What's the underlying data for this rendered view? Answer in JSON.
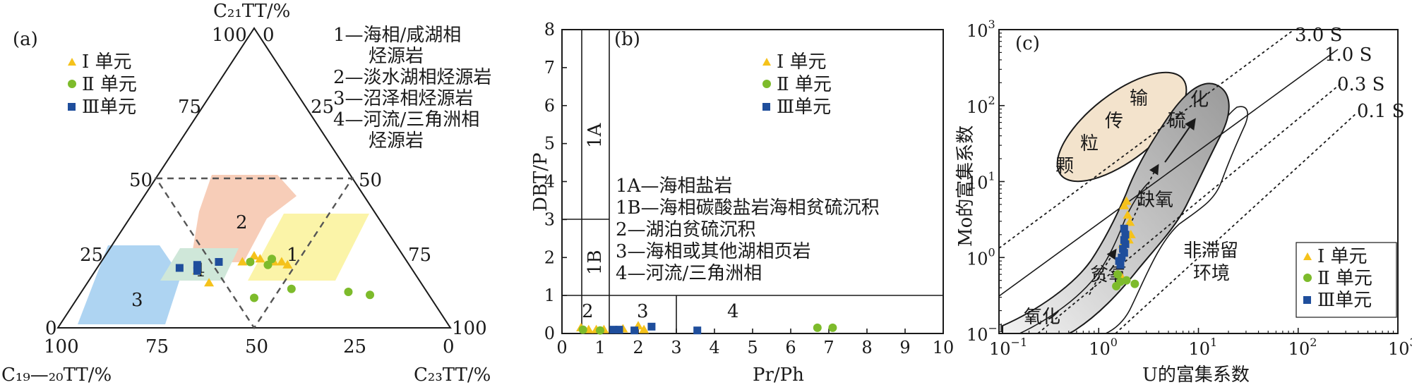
{
  "panel_a": {
    "label": "(a)",
    "apex_top": "C₂₁TT/%",
    "apex_left": "C₁₉—₂₀TT/%",
    "apex_right": "C₂₃TT/%",
    "ticks_top_left": "100",
    "ticks_top_right": "0",
    "left_edge_ticks": [
      "75",
      "50",
      "25",
      "0"
    ],
    "right_edge_ticks": [
      "25",
      "50",
      "75",
      "100"
    ],
    "bottom_ticks": [
      "100",
      "75",
      "50",
      "25",
      "0"
    ],
    "region_labels": [
      "1",
      "2",
      "3",
      "4"
    ],
    "legend": [
      "Ⅰ 单元",
      "Ⅱ 单元",
      "Ⅲ单元"
    ],
    "notes": [
      "1—海相/咸湖相",
      "烃源岩",
      "2—淡水湖相烃源岩",
      "3—沼泽相烃源岩",
      "4—河流/三角洲相",
      "烃源岩"
    ]
  },
  "panel_b": {
    "label": "(b)",
    "xlabel": "Pr/Ph",
    "ylabel": "DBT/P",
    "xticks": [
      "0",
      "1",
      "2",
      "3",
      "4",
      "5",
      "6",
      "7",
      "8",
      "9",
      "10"
    ],
    "yticks": [
      "0",
      "1",
      "2",
      "3",
      "4",
      "5",
      "6",
      "7",
      "8"
    ],
    "zone_labels": [
      "1A",
      "1B",
      "2",
      "3",
      "4"
    ],
    "legend": [
      "Ⅰ 单元",
      "Ⅱ 单元",
      "Ⅲ单元"
    ],
    "notes": [
      "1A—海相盐岩",
      "1B—海相碳酸盐岩海相贫硫沉积",
      "2—湖泊贫硫沉积",
      "3—海相或其他湖相页岩",
      "4—河流/三角洲相"
    ]
  },
  "panel_c": {
    "label": "(c)",
    "xlabel": "U的富集系数",
    "ylabel": "Mo的富集系数",
    "tick_base": "10",
    "xtick_exps": [
      "−1",
      "0",
      "1",
      "2",
      "3"
    ],
    "ytick_exps": [
      "−1",
      "0",
      "1",
      "2",
      "3"
    ],
    "ratio_lines": [
      "3.0 S",
      "1.0 S",
      "0.3 S",
      "0.1 S"
    ],
    "region_particle": [
      "颗",
      "粒",
      "传",
      "输"
    ],
    "region_sulfide": [
      "硫",
      "化"
    ],
    "arrow_labels": [
      "缺氧",
      "贫氧",
      "氧化"
    ],
    "non_restricted": [
      "非滞留",
      "环境"
    ],
    "legend": [
      "Ⅰ 单元",
      "Ⅱ 单元",
      "Ⅲ单元"
    ]
  },
  "colors": {
    "unit1": "#f5c21b",
    "unit2": "#7dbb2b",
    "unit3": "#1f4e9c",
    "region1": "#fbf4a8",
    "region2": "#f7cdb8",
    "region3": "#aed4f2",
    "region4": "#cfe7d9",
    "particle": "#f3e3cc",
    "sulfide": "#bfbfbf"
  },
  "chart_data": [
    {
      "type": "scatter",
      "subtype": "ternary",
      "axes": [
        "C₁₉—₂₀TT/%",
        "C₂₁TT/%",
        "C₂₃TT/%"
      ],
      "series": [
        {
          "name": "Ⅰ 单元",
          "marker": "triangle",
          "points": [
            [
              42,
              22,
              36
            ],
            [
              38,
              24,
              38
            ],
            [
              37,
              23,
              40
            ],
            [
              34,
              22,
              44
            ],
            [
              32,
              22,
              46
            ],
            [
              31,
              21,
              48
            ],
            [
              55,
              19,
              26
            ],
            [
              54,
              15,
              31
            ]
          ]
        },
        {
          "name": "Ⅱ 单元",
          "marker": "circle",
          "points": [
            [
              40,
              22,
              38
            ],
            [
              36,
              21,
              43
            ],
            [
              34,
              23,
              43
            ],
            [
              45,
              10,
              45
            ],
            [
              34,
              13,
              53
            ],
            [
              20,
              12,
              68
            ],
            [
              15,
              11,
              74
            ]
          ]
        },
        {
          "name": "Ⅲ单元",
          "marker": "square",
          "points": [
            [
              59,
              20,
              21
            ],
            [
              55,
              19,
              26
            ],
            [
              54,
              21,
              25
            ],
            [
              48,
              22,
              30
            ]
          ]
        }
      ]
    },
    {
      "type": "scatter",
      "xlim": [
        0,
        10
      ],
      "ylim": [
        0,
        8
      ],
      "series": [
        {
          "name": "Ⅰ 单元",
          "marker": "triangle",
          "points": [
            [
              0.5,
              0.15
            ],
            [
              0.7,
              0.1
            ],
            [
              0.9,
              0.1
            ],
            [
              1.1,
              0.1
            ],
            [
              1.6,
              0.12
            ],
            [
              2.0,
              0.2
            ],
            [
              2.15,
              0.1
            ]
          ]
        },
        {
          "name": "Ⅱ 单元",
          "marker": "circle",
          "points": [
            [
              0.55,
              0.1
            ],
            [
              1.0,
              0.08
            ],
            [
              6.7,
              0.15
            ],
            [
              7.1,
              0.15
            ]
          ]
        },
        {
          "name": "Ⅲ单元",
          "marker": "square",
          "points": [
            [
              1.35,
              0.1
            ],
            [
              1.5,
              0.1
            ],
            [
              1.9,
              0.08
            ],
            [
              2.35,
              0.18
            ],
            [
              3.55,
              0.08
            ]
          ]
        }
      ]
    },
    {
      "type": "scatter",
      "x_scale": "log",
      "y_scale": "log",
      "xlim": [
        0.1,
        1000
      ],
      "ylim": [
        0.1,
        1000
      ],
      "series": [
        {
          "name": "Ⅰ 单元",
          "marker": "triangle",
          "points": [
            [
              1.9,
              5.5
            ],
            [
              1.8,
              4.8
            ],
            [
              1.95,
              3.6
            ],
            [
              2.05,
              2.9
            ],
            [
              2.1,
              2.0
            ],
            [
              2.0,
              1.7
            ],
            [
              1.75,
              1.5
            ],
            [
              1.7,
              0.55
            ]
          ]
        },
        {
          "name": "Ⅱ 单元",
          "marker": "circle",
          "points": [
            [
              1.55,
              0.6
            ],
            [
              1.65,
              0.48
            ],
            [
              1.9,
              0.5
            ],
            [
              2.3,
              0.45
            ],
            [
              1.5,
              0.42
            ]
          ]
        },
        {
          "name": "Ⅲ单元",
          "marker": "square",
          "points": [
            [
              1.8,
              2.4
            ],
            [
              1.85,
              2.0
            ],
            [
              1.8,
              1.7
            ],
            [
              1.85,
              1.5
            ],
            [
              1.75,
              1.3
            ],
            [
              1.8,
              1.15
            ],
            [
              1.7,
              1.0
            ],
            [
              1.6,
              0.9
            ],
            [
              1.65,
              0.8
            ]
          ]
        }
      ]
    }
  ]
}
